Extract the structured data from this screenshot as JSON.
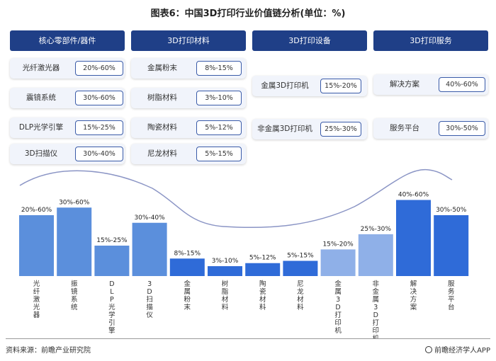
{
  "title": "图表6：中国3D打印行业价值链分析(单位：%)",
  "columns": [
    {
      "header": "核心零部件/器件",
      "items": [
        {
          "label": "光纤激光器",
          "value": "20%-60%"
        },
        {
          "label": "震镜系统",
          "value": "30%-60%"
        },
        {
          "label": "DLP光学引擎",
          "value": "15%-25%"
        },
        {
          "label": "3D扫描仪",
          "value": "30%-40%"
        }
      ]
    },
    {
      "header": "3D打印材料",
      "items": [
        {
          "label": "金属粉末",
          "value": "8%-15%"
        },
        {
          "label": "树脂材料",
          "value": "3%-10%"
        },
        {
          "label": "陶瓷材料",
          "value": "5%-12%"
        },
        {
          "label": "尼龙材料",
          "value": "5%-15%"
        }
      ]
    },
    {
      "header": "3D打印设备",
      "items": [
        {
          "label": "金属3D打印机",
          "value": "15%-20%"
        },
        {
          "label": "非金属3D打印机",
          "value": "25%-30%"
        }
      ]
    },
    {
      "header": "3D打印服务",
      "items": [
        {
          "label": "解决方案",
          "value": "40%-60%"
        },
        {
          "label": "服务平台",
          "value": "30%-50%"
        }
      ]
    }
  ],
  "chart_data": {
    "type": "bar",
    "categories": [
      "光纤激光器",
      "振镜系统",
      "DLP光学引擎",
      "3D扫描仪",
      "金属粉末",
      "树脂材料",
      "陶瓷材料",
      "尼龙材料",
      "金属3D打印机",
      "非金属3D打印机",
      "解决方案",
      "服务平台"
    ],
    "value_labels": [
      "20%-60%",
      "30%-60%",
      "15%-25%",
      "30%-40%",
      "8%-15%",
      "3%-10%",
      "5%-12%",
      "5%-15%",
      "15%-20%",
      "25%-30%",
      "40%-60%",
      "30%-50%"
    ],
    "values": [
      40,
      45,
      20,
      35,
      11.5,
      6.5,
      8.5,
      10,
      17.5,
      27.5,
      50,
      40
    ],
    "ylim": [
      0,
      60
    ],
    "colors": [
      "#5b8fdc",
      "#5b8fdc",
      "#5b8fdc",
      "#5b8fdc",
      "#2f6bd8",
      "#2f6bd8",
      "#2f6bd8",
      "#2f6bd8",
      "#8fb0e8",
      "#8fb0e8",
      "#2f6bd8",
      "#2f6bd8"
    ],
    "curve_color": "#8b95c5",
    "grid": false,
    "legend": "none"
  },
  "footer": {
    "source": "资料来源：前瞻产业研究院",
    "brand": "前瞻经济学人APP"
  }
}
